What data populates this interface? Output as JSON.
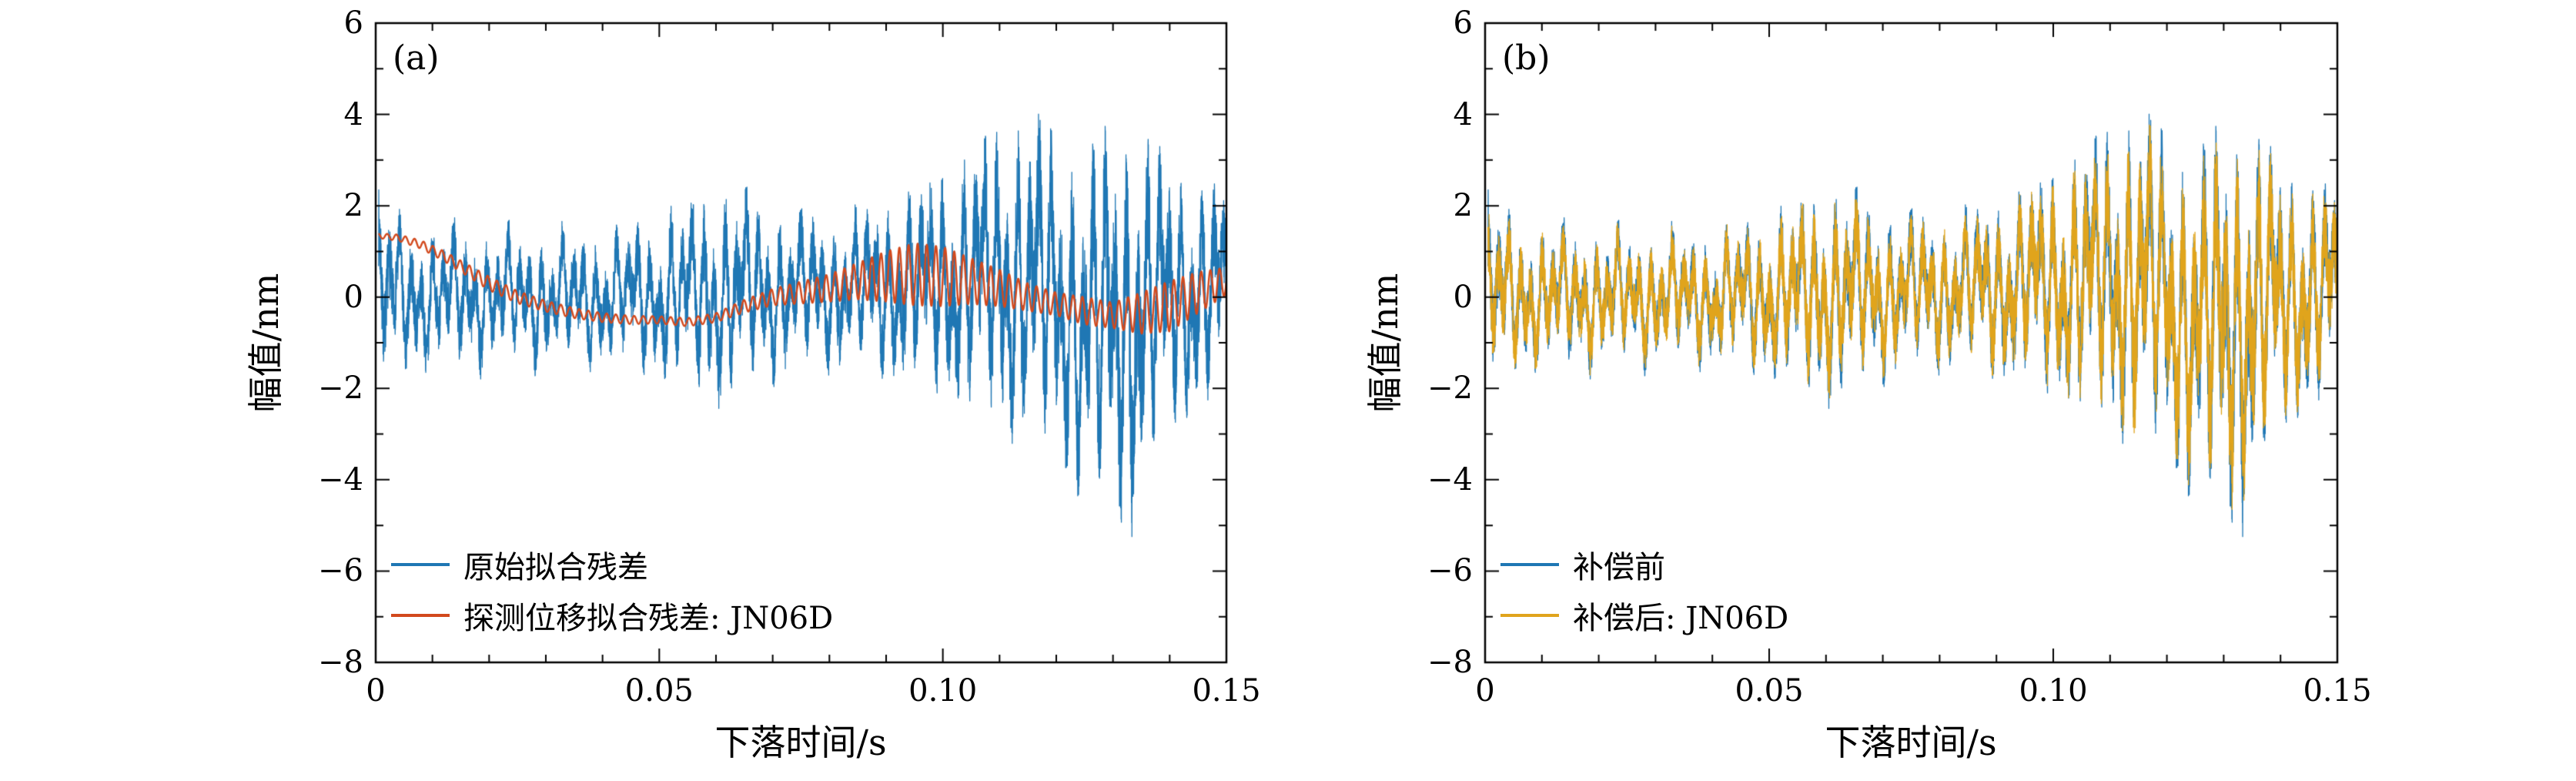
{
  "figure": {
    "background": "#ffffff",
    "axis_color": "#000000"
  },
  "chart_data": [
    {
      "panel": "(a)",
      "type": "line",
      "xlabel": "下落时间/s",
      "ylabel": "幅值/nm",
      "xlim": [
        0,
        0.15
      ],
      "ylim": [
        -8,
        6
      ],
      "xticks": {
        "values": [
          0,
          0.05,
          0.1,
          0.15
        ],
        "labels": [
          "0",
          "0.05",
          "0.10",
          "0.15"
        ]
      },
      "yticks": {
        "values": [
          -8,
          -6,
          -4,
          -2,
          0,
          2,
          4,
          6
        ],
        "labels": [
          "−8",
          "−6",
          "−4",
          "−2",
          "0",
          "2",
          "4",
          "6"
        ]
      },
      "x_minor_step": 0.01,
      "y_minor_step": 1,
      "grid": false,
      "legend_position": "lower left",
      "series": [
        {
          "name": "原始拟合残差",
          "color": "#1f77b4",
          "kind": "noise",
          "seed_phase": 7,
          "seed_white": 7,
          "scale": 0.6,
          "white": 0.5,
          "env_gain": 1.0,
          "components": [
            {
              "f": 523,
              "a": 0.55
            },
            {
              "f": 311,
              "a": 0.3
            },
            {
              "f": 96,
              "a": 0.25
            }
          ],
          "env_t": [
            0,
            0.004,
            0.01,
            0.02,
            0.03,
            0.04,
            0.05,
            0.058,
            0.063,
            0.07,
            0.078,
            0.085,
            0.09,
            0.095,
            0.1,
            0.105,
            0.11,
            0.115,
            0.12,
            0.125,
            0.13,
            0.134,
            0.138,
            0.142,
            0.146,
            0.15
          ],
          "env_a": [
            3.0,
            2.3,
            2.1,
            2.0,
            1.9,
            1.9,
            2.3,
            3.0,
            3.1,
            2.4,
            2.2,
            2.3,
            2.6,
            2.9,
            3.4,
            3.9,
            4.4,
            5.0,
            4.6,
            5.0,
            5.7,
            5.9,
            4.4,
            3.6,
            3.3,
            3.2
          ],
          "mean_t": [
            0,
            0.04,
            0.09,
            0.105,
            0.115,
            0.122,
            0.128,
            0.134,
            0.14,
            0.15
          ],
          "mean_v": [
            0,
            0,
            0.2,
            0.4,
            0.4,
            -0.3,
            -0.7,
            -0.5,
            0,
            0.1
          ]
        },
        {
          "name": "探测位移拟合残差: JN06D",
          "color": "#d2491d",
          "kind": "modulated",
          "osc_freq": 620,
          "drift_t": [
            0,
            0.004,
            0.008,
            0.012,
            0.016,
            0.02,
            0.025,
            0.03,
            0.035,
            0.04,
            0.045,
            0.05,
            0.055,
            0.06,
            0.065,
            0.07,
            0.075,
            0.08,
            0.085,
            0.09,
            0.095,
            0.1,
            0.105,
            0.11,
            0.115,
            0.12,
            0.125,
            0.13,
            0.135,
            0.14,
            0.145,
            0.15
          ],
          "drift_v": [
            1.35,
            1.3,
            1.15,
            0.9,
            0.6,
            0.3,
            0.0,
            -0.2,
            -0.35,
            -0.45,
            -0.5,
            -0.5,
            -0.55,
            -0.45,
            -0.2,
            0.0,
            0.1,
            0.2,
            0.35,
            0.45,
            0.5,
            0.45,
            0.35,
            0.2,
            0.0,
            -0.15,
            -0.3,
            -0.4,
            -0.35,
            -0.2,
            0.1,
            0.35
          ],
          "osc_env_t": [
            0,
            0.01,
            0.02,
            0.03,
            0.04,
            0.05,
            0.06,
            0.07,
            0.08,
            0.085,
            0.09,
            0.095,
            0.1,
            0.105,
            0.11,
            0.115,
            0.12,
            0.125,
            0.13,
            0.135,
            0.14,
            0.145,
            0.15
          ],
          "osc_env_a": [
            0.05,
            0.1,
            0.15,
            0.12,
            0.1,
            0.08,
            0.1,
            0.18,
            0.3,
            0.4,
            0.55,
            0.68,
            0.65,
            0.5,
            0.4,
            0.3,
            0.25,
            0.3,
            0.28,
            0.45,
            0.55,
            0.45,
            0.3
          ]
        }
      ]
    },
    {
      "panel": "(b)",
      "type": "line",
      "xlabel": "下落时间/s",
      "ylabel": "幅值/nm",
      "xlim": [
        0,
        0.15
      ],
      "ylim": [
        -8,
        6
      ],
      "xticks": {
        "values": [
          0,
          0.05,
          0.1,
          0.15
        ],
        "labels": [
          "0",
          "0.05",
          "0.10",
          "0.15"
        ]
      },
      "yticks": {
        "values": [
          -8,
          -6,
          -4,
          -2,
          0,
          2,
          4,
          6
        ],
        "labels": [
          "−8",
          "−6",
          "−4",
          "−2",
          "0",
          "2",
          "4",
          "6"
        ]
      },
      "x_minor_step": 0.01,
      "y_minor_step": 1,
      "grid": false,
      "legend_position": "lower left",
      "series": [
        {
          "name": "补偿前",
          "color": "#1f77b4",
          "kind": "noise",
          "seed_phase": 7,
          "seed_white": 7,
          "scale": 0.6,
          "white": 0.5,
          "env_gain": 1.0,
          "components": [
            {
              "f": 523,
              "a": 0.55
            },
            {
              "f": 311,
              "a": 0.3
            },
            {
              "f": 96,
              "a": 0.25
            }
          ],
          "env_t": [
            0,
            0.004,
            0.01,
            0.02,
            0.03,
            0.04,
            0.05,
            0.058,
            0.063,
            0.07,
            0.078,
            0.085,
            0.09,
            0.095,
            0.1,
            0.105,
            0.11,
            0.115,
            0.12,
            0.125,
            0.13,
            0.134,
            0.138,
            0.142,
            0.146,
            0.15
          ],
          "env_a": [
            3.0,
            2.3,
            2.1,
            2.0,
            1.9,
            1.9,
            2.3,
            3.0,
            3.1,
            2.4,
            2.2,
            2.3,
            2.6,
            2.9,
            3.4,
            3.9,
            4.4,
            5.0,
            4.6,
            5.0,
            5.7,
            5.9,
            4.4,
            3.6,
            3.3,
            3.2
          ],
          "mean_t": [
            0,
            0.04,
            0.09,
            0.105,
            0.115,
            0.122,
            0.128,
            0.134,
            0.14,
            0.15
          ],
          "mean_v": [
            0,
            0,
            0.2,
            0.4,
            0.4,
            -0.3,
            -0.7,
            -0.5,
            0,
            0.1
          ]
        },
        {
          "name": "补偿后: JN06D",
          "color": "#e0a41c",
          "kind": "noise",
          "seed_phase": 7,
          "seed_white": 13,
          "scale": 0.6,
          "white": 0.5,
          "env_gain": 0.93,
          "components": [
            {
              "f": 523,
              "a": 0.55
            },
            {
              "f": 311,
              "a": 0.3
            },
            {
              "f": 96,
              "a": 0.25
            }
          ],
          "env_t": [
            0,
            0.004,
            0.01,
            0.02,
            0.03,
            0.04,
            0.05,
            0.058,
            0.063,
            0.07,
            0.078,
            0.085,
            0.09,
            0.095,
            0.1,
            0.105,
            0.11,
            0.115,
            0.12,
            0.125,
            0.13,
            0.134,
            0.138,
            0.142,
            0.146,
            0.15
          ],
          "env_a": [
            3.0,
            2.3,
            2.1,
            2.0,
            1.9,
            1.9,
            2.3,
            3.0,
            3.1,
            2.4,
            2.2,
            2.3,
            2.6,
            2.9,
            3.4,
            3.9,
            4.4,
            5.0,
            4.6,
            5.0,
            5.7,
            5.9,
            4.4,
            3.6,
            3.3,
            3.2
          ],
          "mean_t": [
            0,
            0.04,
            0.09,
            0.105,
            0.115,
            0.122,
            0.128,
            0.134,
            0.14,
            0.15
          ],
          "mean_v": [
            0,
            0,
            0.2,
            0.4,
            0.4,
            -0.3,
            -0.7,
            -0.5,
            0,
            0.1
          ]
        }
      ]
    }
  ]
}
